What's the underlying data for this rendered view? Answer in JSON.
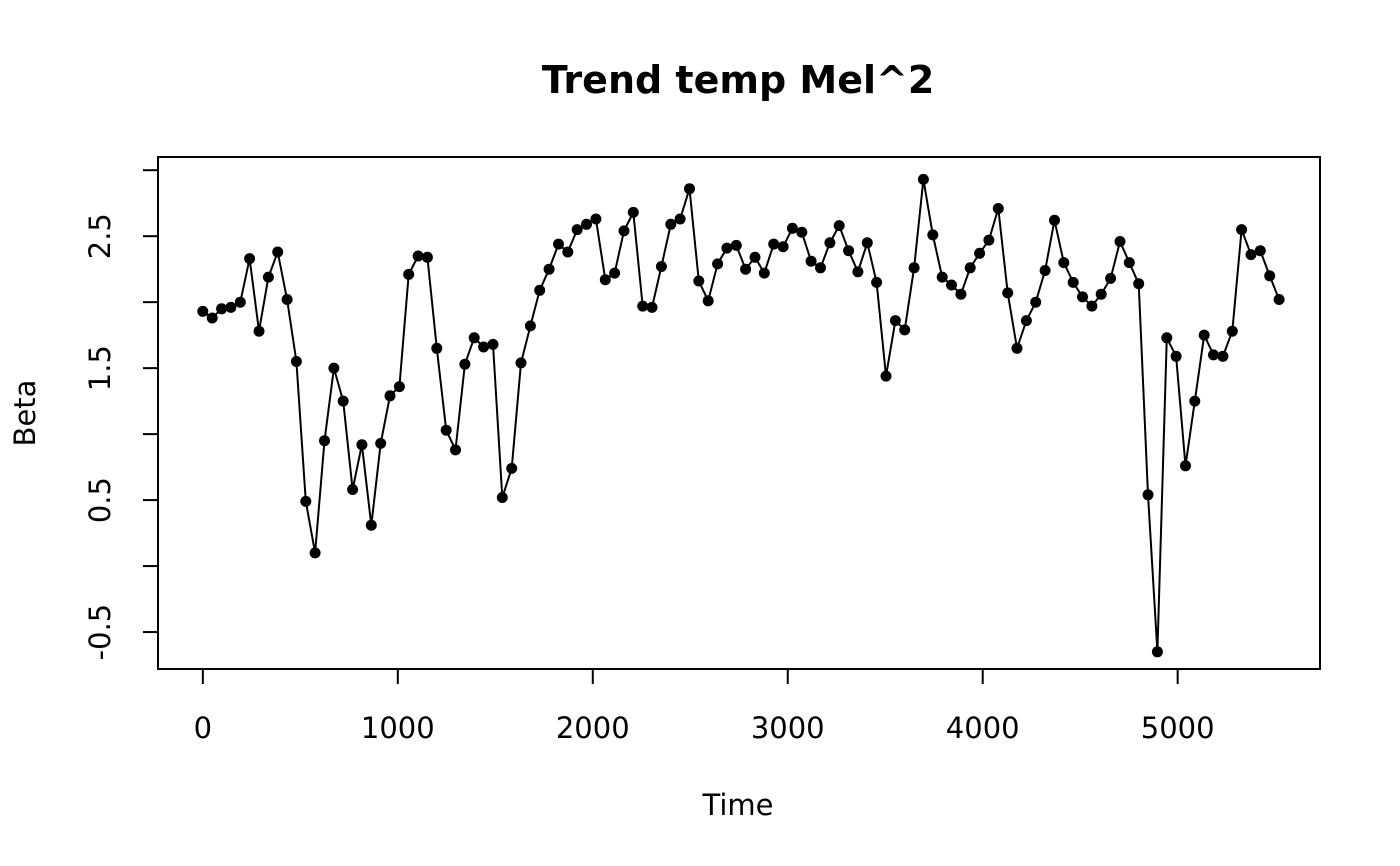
{
  "chart_data": {
    "type": "line",
    "title": "Trend temp Mel^2",
    "xlabel": "Time",
    "ylabel": "Beta",
    "xlim": [
      -230,
      5730
    ],
    "ylim": [
      -0.78,
      3.1
    ],
    "x_ticks": [
      0,
      1000,
      2000,
      3000,
      4000,
      5000
    ],
    "x_tick_labels": [
      "0",
      "1000",
      "2000",
      "3000",
      "4000",
      "5000"
    ],
    "y_ticks": [
      -0.5,
      0,
      0.5,
      1,
      1.5,
      2,
      2.5,
      3
    ],
    "y_tick_labels": [
      "-0.5",
      "",
      "0.5",
      "",
      "1.5",
      "",
      "2.5",
      ""
    ],
    "grid": false,
    "point_style": "filled-circle",
    "color": "#000000",
    "series": [
      {
        "x": [
          0,
          48,
          96,
          144,
          192,
          240,
          288,
          336,
          384,
          432,
          480,
          528,
          576,
          624,
          672,
          720,
          768,
          816,
          864,
          912,
          960,
          1008,
          1056,
          1104,
          1152,
          1200,
          1248,
          1296,
          1344,
          1392,
          1440,
          1488,
          1536,
          1584,
          1632,
          1680,
          1728,
          1776,
          1824,
          1872,
          1920,
          1968,
          2016,
          2064,
          2112,
          2160,
          2208,
          2256,
          2304,
          2352,
          2400,
          2448,
          2496,
          2544,
          2592,
          2640,
          2688,
          2736,
          2784,
          2832,
          2880,
          2928,
          2976,
          3024,
          3072,
          3120,
          3168,
          3216,
          3264,
          3312,
          3360,
          3408,
          3456,
          3504,
          3552,
          3600,
          3648,
          3696,
          3744,
          3792,
          3840,
          3888,
          3936,
          3984,
          4032,
          4080,
          4128,
          4176,
          4224,
          4272,
          4320,
          4368,
          4416,
          4464,
          4512,
          4560,
          4608,
          4656,
          4704,
          4752,
          4800,
          4848,
          4896,
          4944,
          4992,
          5040,
          5088,
          5136,
          5184,
          5232,
          5280,
          5328,
          5376,
          5424,
          5472,
          5520
        ],
        "values": [
          1.93,
          1.88,
          1.95,
          1.96,
          2.0,
          2.33,
          1.78,
          2.19,
          2.38,
          2.02,
          1.55,
          0.49,
          0.1,
          0.95,
          1.5,
          1.25,
          0.58,
          0.92,
          0.31,
          0.93,
          1.29,
          1.36,
          2.21,
          2.35,
          2.34,
          1.65,
          1.03,
          0.88,
          1.53,
          1.73,
          1.66,
          1.68,
          0.52,
          0.74,
          1.54,
          1.82,
          2.09,
          2.25,
          2.44,
          2.38,
          2.55,
          2.59,
          2.63,
          2.17,
          2.22,
          2.54,
          2.68,
          1.97,
          1.96,
          2.27,
          2.59,
          2.63,
          2.86,
          2.16,
          2.01,
          2.29,
          2.41,
          2.43,
          2.25,
          2.34,
          2.22,
          2.44,
          2.42,
          2.56,
          2.53,
          2.31,
          2.26,
          2.45,
          2.58,
          2.39,
          2.23,
          2.45,
          2.15,
          1.44,
          1.86,
          1.79,
          2.26,
          2.93,
          2.51,
          2.19,
          2.13,
          2.06,
          2.26,
          2.37,
          2.47,
          2.71,
          2.07,
          1.65,
          1.86,
          2.0,
          2.24,
          2.62,
          2.3,
          2.15,
          2.04,
          1.97,
          2.06,
          2.18,
          2.46,
          2.3,
          2.14,
          0.54,
          -0.65,
          1.73,
          1.59,
          0.76,
          1.25,
          1.75,
          1.6,
          1.59,
          1.78,
          2.55,
          2.36,
          2.39,
          2.2,
          2.02
        ]
      }
    ]
  }
}
